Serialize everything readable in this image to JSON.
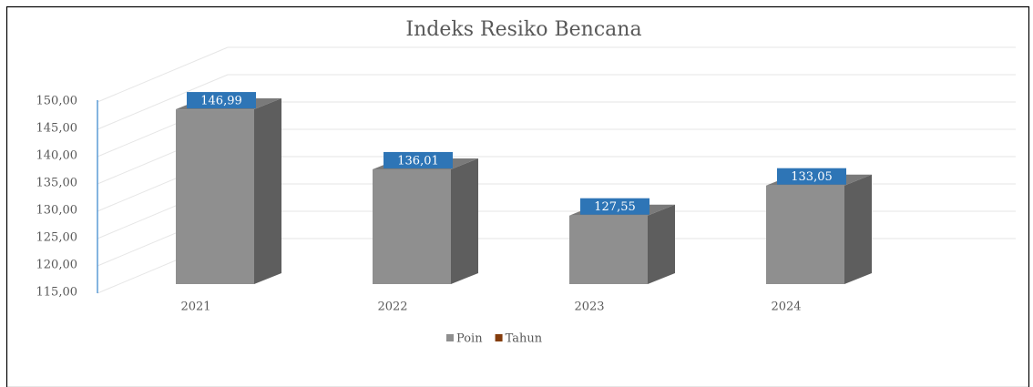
{
  "chart_data": {
    "type": "bar3d",
    "title": "Indeks Resiko Bencana",
    "categories": [
      "2021",
      "2022",
      "2023",
      "2024"
    ],
    "series": [
      {
        "name": "Poin",
        "color": "#8f8f8f",
        "values": [
          146.99,
          136.01,
          127.55,
          133.05
        ],
        "value_labels": [
          "146,99",
          "136,01",
          "127,55",
          "133,05"
        ]
      },
      {
        "name": "Tahun",
        "color": "#843c0c",
        "values": [
          null,
          null,
          null,
          null
        ]
      }
    ],
    "ylim": [
      115,
      150
    ],
    "yticks": [
      {
        "value": 115,
        "label": "115,00"
      },
      {
        "value": 120,
        "label": "120,00"
      },
      {
        "value": 125,
        "label": "125,00"
      },
      {
        "value": 130,
        "label": "130,00"
      },
      {
        "value": 135,
        "label": "135,00"
      },
      {
        "value": 140,
        "label": "140,00"
      },
      {
        "value": 145,
        "label": "145,00"
      },
      {
        "value": 150,
        "label": "150,00"
      }
    ],
    "grid": true,
    "legend": "bottom",
    "label_color": "#2e75b6"
  }
}
